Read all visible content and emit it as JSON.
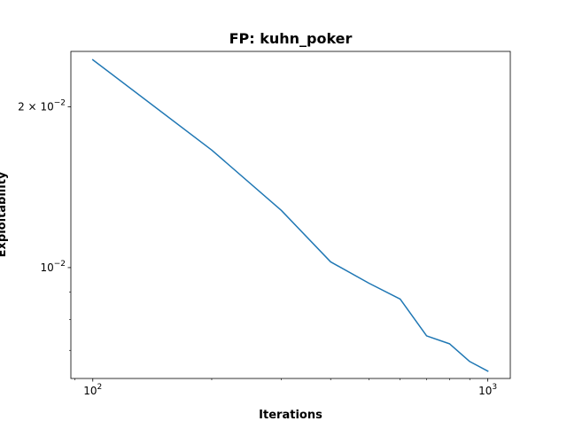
{
  "chart_data": {
    "type": "line",
    "title": "FP: kuhn_poker",
    "xlabel": "Iterations",
    "ylabel": "Exploitability",
    "xscale": "log",
    "yscale": "log",
    "xlim": [
      88,
      1140
    ],
    "ylim": [
      0.0062,
      0.0254
    ],
    "grid": false,
    "x_ticks": [
      {
        "value": 100,
        "base": "10",
        "exp": "2"
      },
      {
        "value": 1000,
        "base": "10",
        "exp": "3"
      }
    ],
    "y_ticks": [
      {
        "value": 0.01,
        "mant": "",
        "base": "10",
        "exp": "−2"
      },
      {
        "value": 0.02,
        "mant": "2 × ",
        "base": "10",
        "exp": "−2"
      }
    ],
    "series": [
      {
        "color": "#1f77b4",
        "x": [
          100,
          200,
          300,
          400,
          500,
          600,
          700,
          800,
          900,
          1000
        ],
        "y": [
          0.0245,
          0.0166,
          0.0128,
          0.01025,
          0.00935,
          0.00873,
          0.00745,
          0.0072,
          0.00667,
          0.0064
        ]
      }
    ]
  }
}
